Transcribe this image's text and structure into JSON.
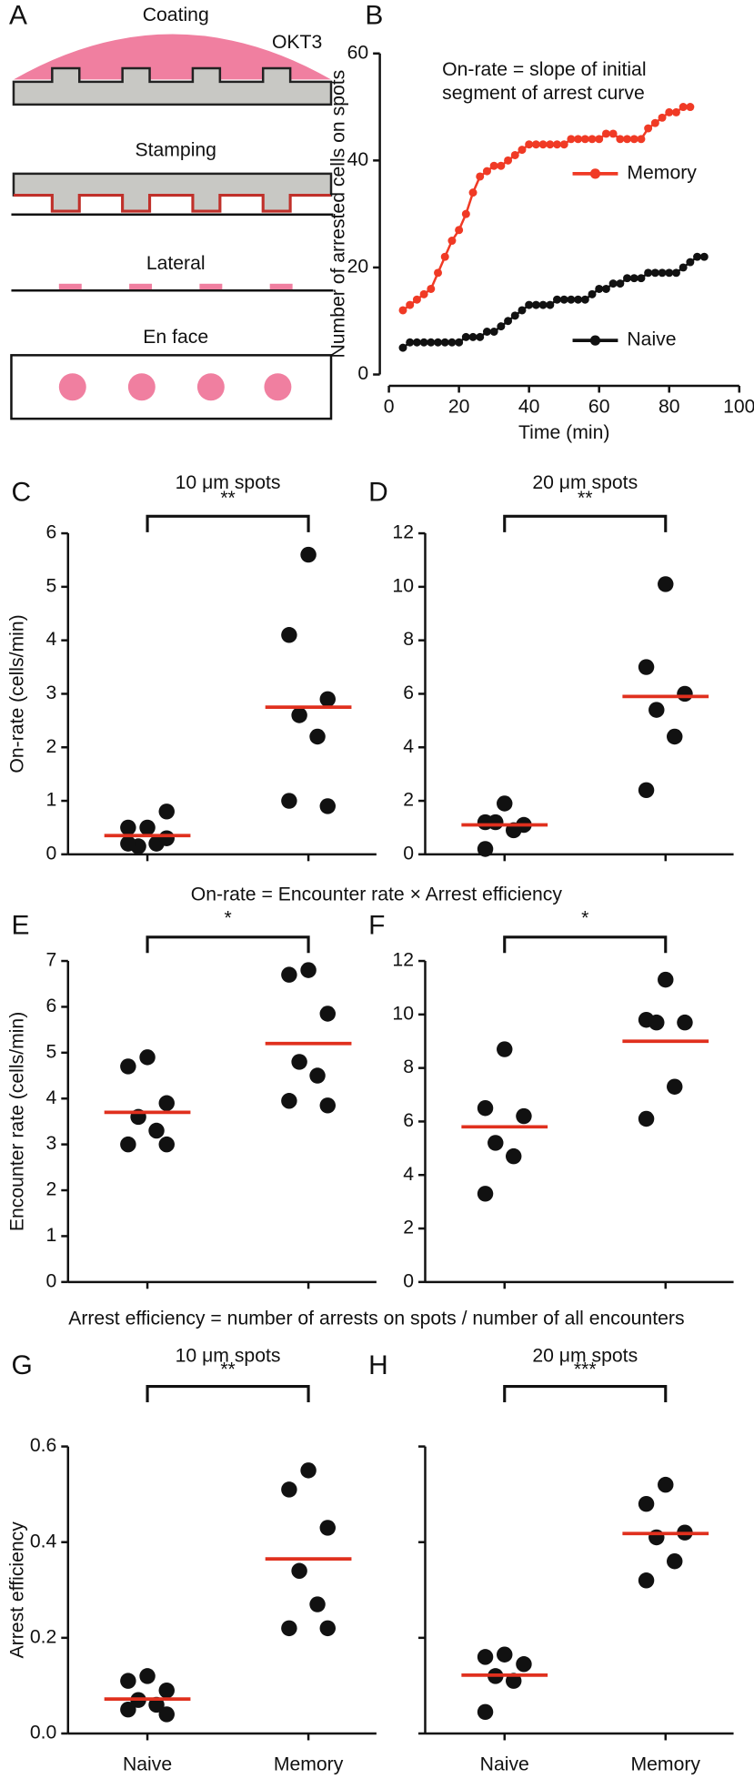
{
  "diagram": {
    "panel": "A",
    "labels": [
      "Coating",
      "OKT3",
      "Stamping",
      "Lateral",
      "En face"
    ]
  },
  "annotations": [
    "On-rate = Encounter rate × Arrest efficiency",
    "Arrest efficiency = number of arrests on spots / number of all encounters"
  ],
  "chart_data": [
    {
      "type": "line",
      "panel": "B",
      "xlabel": "Time (min)",
      "ylabel": "Number of arrested cells on spots",
      "annotation": [
        "On-rate = slope of initial",
        "segment of arrest curve"
      ],
      "xlim": [
        0,
        100
      ],
      "xticks": [
        0,
        20,
        40,
        60,
        80,
        100
      ],
      "ylim": [
        0,
        60
      ],
      "yticks": [
        0,
        20,
        40,
        60
      ],
      "series": [
        {
          "name": "Memory",
          "color": "#f03a25",
          "x": [
            4,
            6,
            8,
            10,
            12,
            14,
            16,
            18,
            20,
            22,
            24,
            26,
            28,
            30,
            32,
            34,
            36,
            38,
            40,
            42,
            44,
            46,
            48,
            50,
            52,
            54,
            56,
            58,
            60,
            62,
            64,
            66,
            68,
            70,
            72,
            74,
            76,
            78,
            80,
            82,
            84,
            86
          ],
          "values": [
            12,
            13,
            14,
            15,
            16,
            19,
            22,
            25,
            27,
            30,
            34,
            37,
            38,
            39,
            39,
            40,
            41,
            42,
            43,
            43,
            43,
            43,
            43,
            43,
            44,
            44,
            44,
            44,
            44,
            45,
            45,
            44,
            44,
            44,
            44,
            46,
            47,
            48,
            49,
            49,
            50,
            50
          ]
        },
        {
          "name": "Naive",
          "color": "#111111",
          "x": [
            4,
            6,
            8,
            10,
            12,
            14,
            16,
            18,
            20,
            22,
            24,
            26,
            28,
            30,
            32,
            34,
            36,
            38,
            40,
            42,
            44,
            46,
            48,
            50,
            52,
            54,
            56,
            58,
            60,
            62,
            64,
            66,
            68,
            70,
            72,
            74,
            76,
            78,
            80,
            82,
            84,
            86,
            88,
            90
          ],
          "values": [
            5,
            6,
            6,
            6,
            6,
            6,
            6,
            6,
            6,
            7,
            7,
            7,
            8,
            8,
            9,
            10,
            11,
            12,
            13,
            13,
            13,
            13,
            14,
            14,
            14,
            14,
            14,
            15,
            16,
            16,
            17,
            17,
            18,
            18,
            18,
            19,
            19,
            19,
            19,
            19,
            20,
            21,
            22,
            22
          ]
        }
      ]
    },
    {
      "type": "dot",
      "panel": "C",
      "title": "10 μm spots",
      "ylabel": "On-rate (cells/min)",
      "significance": "**",
      "ylim": [
        0,
        6
      ],
      "yticks": [
        0,
        1,
        2,
        3,
        4,
        5,
        6
      ],
      "point_color": "#111111",
      "mean_color": "#e0301e",
      "values": [
        [
          0.5,
          0.5,
          0.8,
          0.15,
          0.2,
          0.2,
          0.3
        ],
        [
          5.6,
          4.1,
          2.9,
          2.6,
          2.2,
          1.0,
          0.9
        ]
      ],
      "means": [
        0.35,
        2.75
      ]
    },
    {
      "type": "dot",
      "panel": "D",
      "title": "20 μm spots",
      "significance": "**",
      "ylim": [
        0,
        12
      ],
      "yticks": [
        0,
        2,
        4,
        6,
        8,
        10,
        12
      ],
      "point_color": "#111111",
      "mean_color": "#e0301e",
      "values": [
        [
          1.9,
          1.2,
          1.1,
          1.2,
          0.9,
          0.2
        ],
        [
          10.1,
          7.0,
          6.0,
          5.4,
          4.4,
          2.4
        ]
      ],
      "means": [
        1.1,
        5.9
      ]
    },
    {
      "type": "dot",
      "panel": "E",
      "ylabel": "Encounter rate (cells/min)",
      "significance": "*",
      "ylim": [
        0,
        7
      ],
      "yticks": [
        0,
        1,
        2,
        3,
        4,
        5,
        6,
        7
      ],
      "point_color": "#111111",
      "mean_color": "#e0301e",
      "values": [
        [
          4.9,
          4.7,
          3.9,
          3.6,
          3.3,
          3.0,
          3.0
        ],
        [
          6.8,
          6.7,
          5.85,
          4.8,
          4.5,
          3.95,
          3.85
        ]
      ],
      "means": [
        3.7,
        5.2
      ]
    },
    {
      "type": "dot",
      "panel": "F",
      "significance": "*",
      "ylim": [
        0,
        12
      ],
      "yticks": [
        0,
        2,
        4,
        6,
        8,
        10,
        12
      ],
      "point_color": "#111111",
      "mean_color": "#e0301e",
      "values": [
        [
          8.7,
          6.5,
          6.2,
          5.2,
          4.7,
          3.3
        ],
        [
          11.3,
          9.8,
          9.7,
          9.7,
          7.3,
          6.1
        ]
      ],
      "means": [
        5.8,
        9.0
      ]
    },
    {
      "type": "dot",
      "panel": "G",
      "title": "10 μm spots",
      "ylabel": "Arrest efficiency",
      "significance": "**",
      "categories": [
        "Naive",
        "Memory"
      ],
      "ylim": [
        0,
        0.6
      ],
      "yticks": [
        {
          "value": 0,
          "label": "0.0"
        },
        0.2,
        0.4,
        0.6
      ],
      "point_color": "#111111",
      "mean_color": "#e0301e",
      "values": [
        [
          0.12,
          0.11,
          0.09,
          0.07,
          0.06,
          0.05,
          0.04
        ],
        [
          0.55,
          0.51,
          0.43,
          0.34,
          0.27,
          0.22,
          0.22
        ]
      ],
      "means": [
        0.072,
        0.365
      ]
    },
    {
      "type": "dot",
      "panel": "H",
      "title": "20 μm spots",
      "significance": "***",
      "categories": [
        "Naive",
        "Memory"
      ],
      "ylim": [
        0,
        0.6
      ],
      "yticks": [
        0,
        0.2,
        0.4,
        0.6
      ],
      "ytick_labels": false,
      "point_color": "#111111",
      "mean_color": "#e0301e",
      "values": [
        [
          0.165,
          0.16,
          0.145,
          0.12,
          0.11,
          0.045
        ],
        [
          0.52,
          0.48,
          0.42,
          0.41,
          0.36,
          0.32
        ]
      ],
      "means": [
        0.122,
        0.418
      ]
    }
  ]
}
